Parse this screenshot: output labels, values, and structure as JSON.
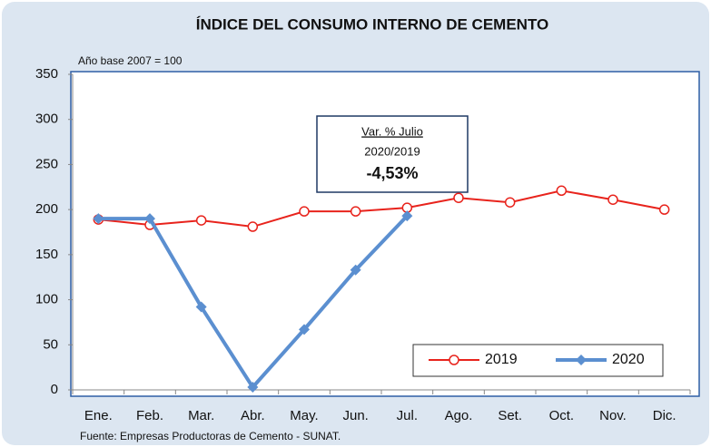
{
  "chart_data": {
    "type": "line",
    "title": "ÍNDICE DEL CONSUMO INTERNO DE CEMENTO",
    "subtitle": "Año base  2007  =  100",
    "source": "Fuente: Empresas Productoras de Cemento - SUNAT.",
    "categories": [
      "Ene.",
      "Feb.",
      "Mar.",
      "Abr.",
      "May.",
      "Jun.",
      "Jul.",
      "Ago.",
      "Set.",
      "Oct.",
      "Nov.",
      "Dic."
    ],
    "series": [
      {
        "name": "2019",
        "color": "#e8231c",
        "marker": "circle",
        "values": [
          189,
          183,
          188,
          181,
          198,
          198,
          202,
          213,
          208,
          221,
          211,
          200
        ]
      },
      {
        "name": "2020",
        "color": "#5b8fd0",
        "marker": "diamond",
        "values": [
          190,
          190,
          92,
          3,
          67,
          133,
          193,
          null,
          null,
          null,
          null,
          null
        ]
      }
    ],
    "annotation": {
      "title": "Var. % Julio",
      "subtitle": "2020/2019",
      "value": "-4,53%"
    },
    "ylim": [
      0,
      350
    ],
    "yticks": [
      0,
      50,
      100,
      150,
      200,
      250,
      300,
      350
    ],
    "grid": false,
    "legend": "lower right"
  }
}
